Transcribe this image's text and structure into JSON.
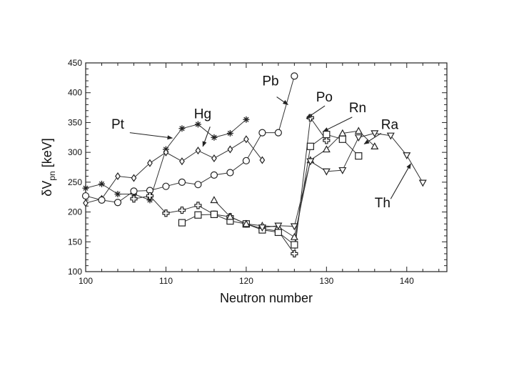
{
  "chart_data": {
    "type": "line",
    "xlabel": "Neutron number",
    "ylabel_main": "δV",
    "ylabel_sub": "pn",
    "ylabel_unit": " [keV]",
    "xlim": [
      100,
      145
    ],
    "ylim": [
      100,
      450
    ],
    "xticks": [
      100,
      110,
      120,
      130,
      140
    ],
    "yticks": [
      100,
      150,
      200,
      250,
      300,
      350,
      400,
      450
    ],
    "grid": false,
    "series": [
      {
        "name": "Pt",
        "marker": "asterisk",
        "x": [
          100,
          102,
          104,
          106,
          108,
          110,
          112,
          114,
          116,
          118,
          120
        ],
        "y": [
          240,
          247,
          230,
          230,
          220,
          305,
          340,
          347,
          325,
          332,
          355
        ]
      },
      {
        "name": "Hg",
        "marker": "diamond",
        "x": [
          100,
          102,
          104,
          106,
          108,
          110,
          112,
          114,
          116,
          118,
          120,
          122
        ],
        "y": [
          215,
          222,
          260,
          257,
          282,
          300,
          285,
          303,
          290,
          305,
          322,
          287
        ]
      },
      {
        "name": "Pb",
        "marker": "circle",
        "x": [
          100,
          102,
          104,
          106,
          108,
          110,
          112,
          114,
          116,
          118,
          120,
          122,
          124,
          126
        ],
        "y": [
          227,
          220,
          216,
          235,
          236,
          243,
          250,
          246,
          262,
          266,
          286,
          333,
          333,
          428
        ]
      },
      {
        "name": "Po",
        "marker": "cross",
        "x": [
          106,
          108,
          110,
          112,
          114,
          116,
          118,
          120,
          122,
          124,
          126,
          128,
          130
        ],
        "y": [
          222,
          227,
          198,
          203,
          211,
          196,
          192,
          180,
          172,
          168,
          130,
          358,
          320
        ]
      },
      {
        "name": "Rn",
        "marker": "square",
        "x": [
          112,
          114,
          116,
          118,
          120,
          122,
          124,
          126,
          128,
          130,
          132,
          134
        ],
        "y": [
          182,
          195,
          196,
          185,
          180,
          170,
          166,
          145,
          310,
          330,
          322,
          294
        ]
      },
      {
        "name": "Ra",
        "marker": "triangle-up",
        "x": [
          116,
          118,
          120,
          122,
          124,
          126,
          128,
          130,
          132,
          134,
          136
        ],
        "y": [
          220,
          192,
          180,
          177,
          175,
          158,
          287,
          305,
          332,
          336,
          310
        ]
      },
      {
        "name": "Th",
        "marker": "triangle-down",
        "x": [
          122,
          124,
          126,
          128,
          130,
          132,
          134,
          136,
          138,
          140,
          142
        ],
        "y": [
          174,
          177,
          176,
          285,
          268,
          270,
          325,
          332,
          328,
          295,
          249
        ]
      }
    ],
    "annotations": [
      {
        "text": "Pt",
        "x": 103.2,
        "y": 340
      },
      {
        "text": "Hg",
        "x": 113.5,
        "y": 357
      },
      {
        "text": "Pb",
        "x": 122.0,
        "y": 412
      },
      {
        "text": "Po",
        "x": 128.7,
        "y": 385
      },
      {
        "text": "Rn",
        "x": 132.8,
        "y": 367
      },
      {
        "text": "Ra",
        "x": 136.8,
        "y": 339
      },
      {
        "text": "Th",
        "x": 136.0,
        "y": 208
      }
    ]
  }
}
